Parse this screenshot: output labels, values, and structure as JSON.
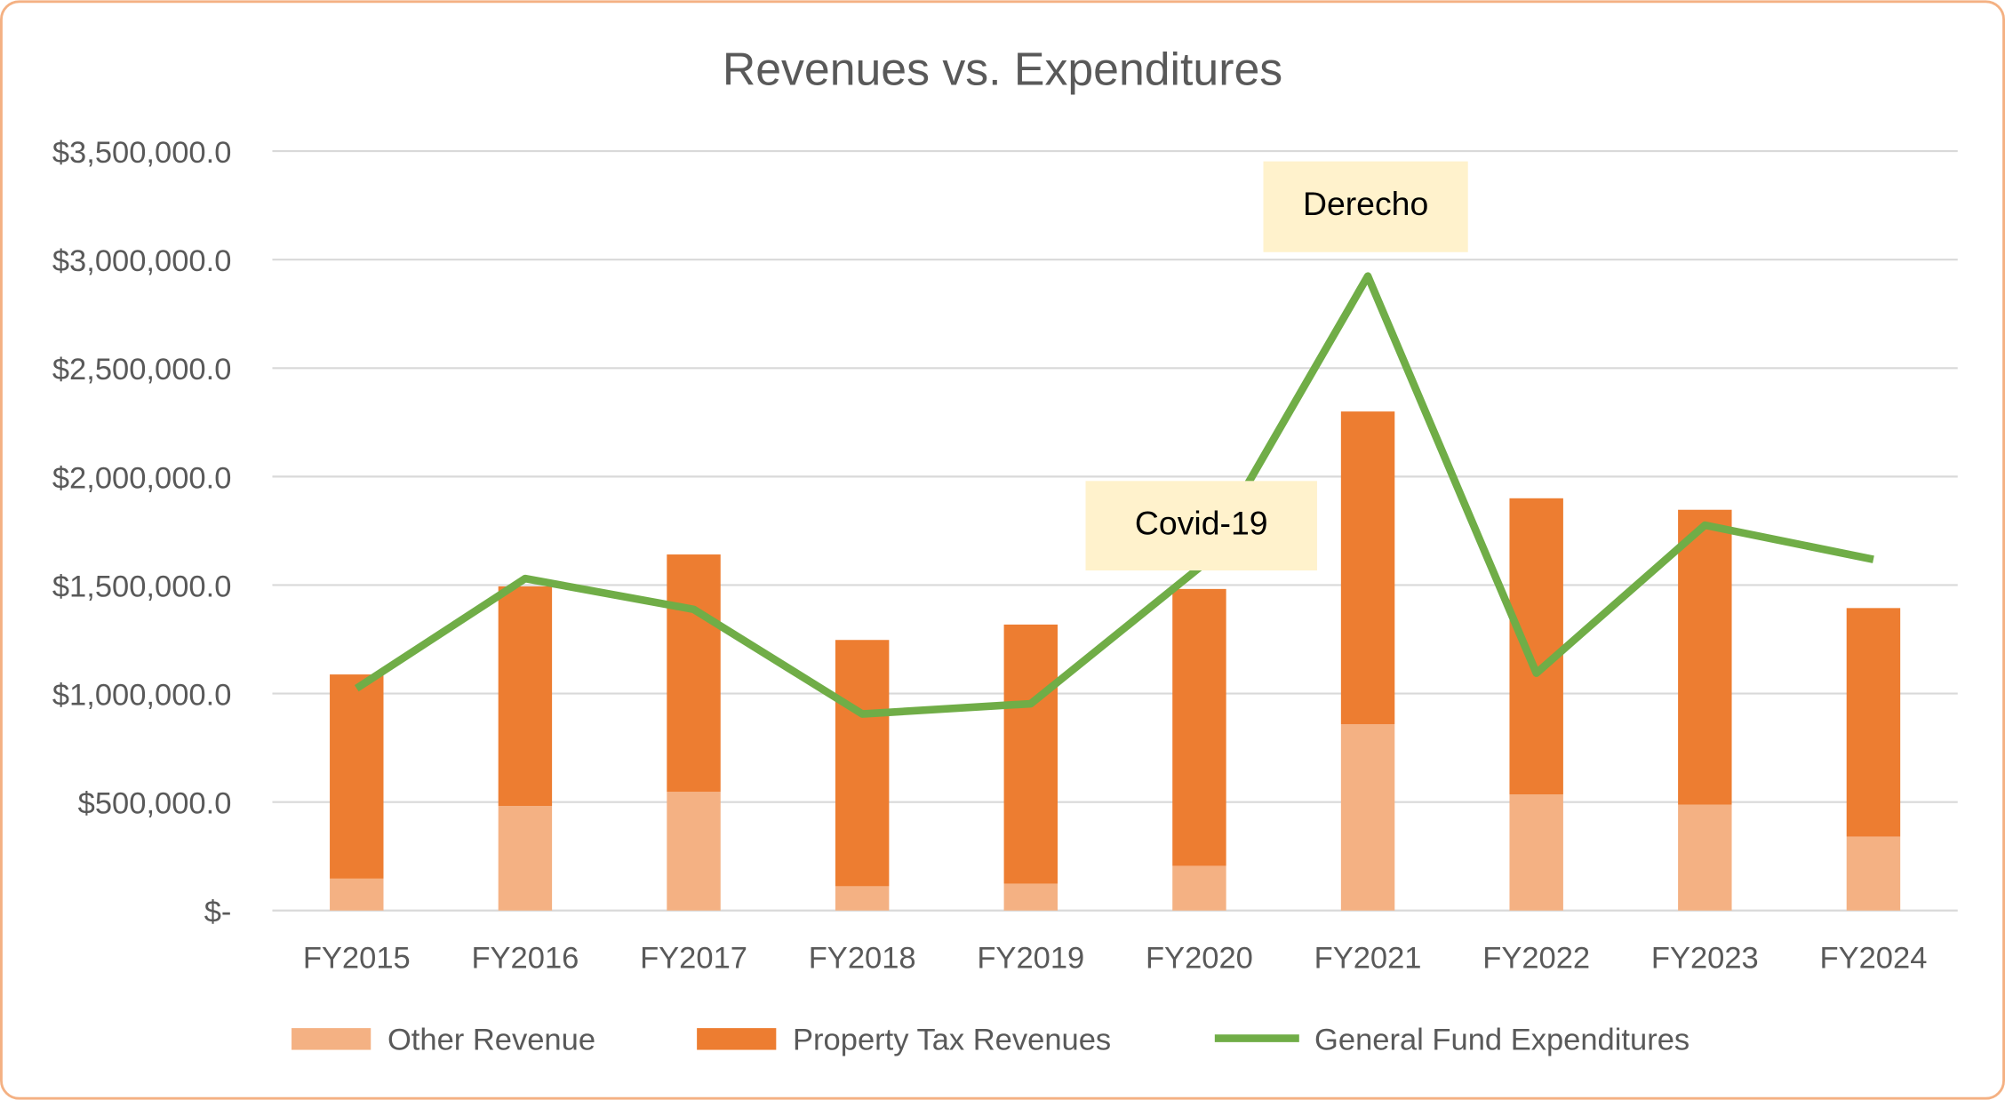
{
  "chart_data": {
    "type": "bar",
    "stacked": true,
    "title": "Revenues vs. Expenditures",
    "xlabel": "",
    "ylabel": "",
    "ylim": [
      0,
      3500000
    ],
    "grid": true,
    "legend_position": "bottom",
    "categories": [
      "FY2015",
      "FY2016",
      "FY2017",
      "FY2018",
      "FY2019",
      "FY2020",
      "FY2021",
      "FY2022",
      "FY2023",
      "FY2024"
    ],
    "yticks": [
      {
        "value": 0,
        "label": "$-"
      },
      {
        "value": 500000,
        "label": "$500,000.0"
      },
      {
        "value": 1000000,
        "label": "$1,000,000.0"
      },
      {
        "value": 1500000,
        "label": "$1,500,000.0"
      },
      {
        "value": 2000000,
        "label": "$2,000,000.0"
      },
      {
        "value": 2500000,
        "label": "$2,500,000.0"
      },
      {
        "value": 3000000,
        "label": "$3,000,000.0"
      },
      {
        "value": 3500000,
        "label": "$3,500,000.0"
      }
    ],
    "series": [
      {
        "name": "Other Revenue",
        "type": "bar",
        "color": "#F4B183",
        "values": [
          147000,
          482000,
          547000,
          112000,
          124000,
          206000,
          859000,
          535000,
          488000,
          341000
        ]
      },
      {
        "name": "Property Tax Revenues",
        "type": "bar",
        "color": "#ED7D31",
        "values": [
          941000,
          1012000,
          1094000,
          1135000,
          1194000,
          1276000,
          1441000,
          1365000,
          1359000,
          1053000
        ]
      },
      {
        "name": "General Fund Expenditures",
        "type": "line",
        "color": "#70AD47",
        "values": [
          1024000,
          1530000,
          1388000,
          906000,
          953000,
          1580000,
          2924000,
          1094000,
          1776000,
          1618000
        ]
      }
    ],
    "annotations": [
      {
        "text": "Covid-19",
        "category": "FY2020"
      },
      {
        "text": "Derecho",
        "category": "FY2021"
      }
    ]
  }
}
